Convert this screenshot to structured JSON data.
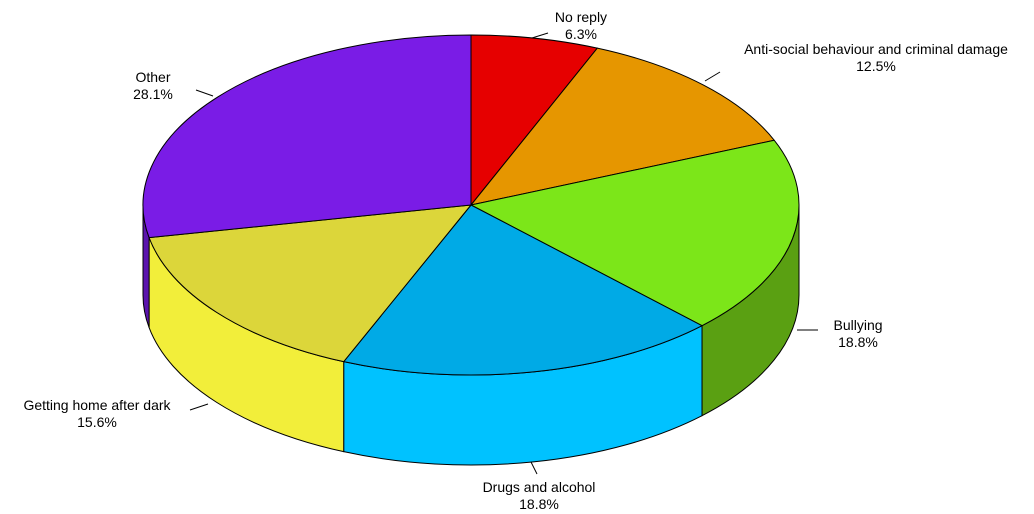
{
  "chart_data": {
    "type": "pie",
    "title": "",
    "style": "3d-extruded",
    "start": "top, clockwise",
    "slices": [
      {
        "label": "No reply",
        "value": 6.3,
        "value_label": "6.3%",
        "color": "#e60000",
        "side_color": "#b80000"
      },
      {
        "label": "Anti-social behaviour and criminal damage",
        "value": 12.5,
        "value_label": "12.5%",
        "color": "#e69600",
        "side_color": "#b87400"
      },
      {
        "label": "Bullying",
        "value": 18.8,
        "value_label": "18.8%",
        "color": "#7ce619",
        "side_color": "#5aa012"
      },
      {
        "label": "Drugs and alcohol",
        "value": 18.8,
        "value_label": "18.8%",
        "color": "#00aae6",
        "side_color": "#00c2ff"
      },
      {
        "label": "Getting home after dark",
        "value": 15.6,
        "value_label": "15.6%",
        "color": "#dcd63a",
        "side_color": "#f2ee3a"
      },
      {
        "label": "Other",
        "value": 28.1,
        "value_label": "28.1%",
        "color": "#7a1ce6",
        "side_color": "#5b14ad"
      }
    ]
  }
}
